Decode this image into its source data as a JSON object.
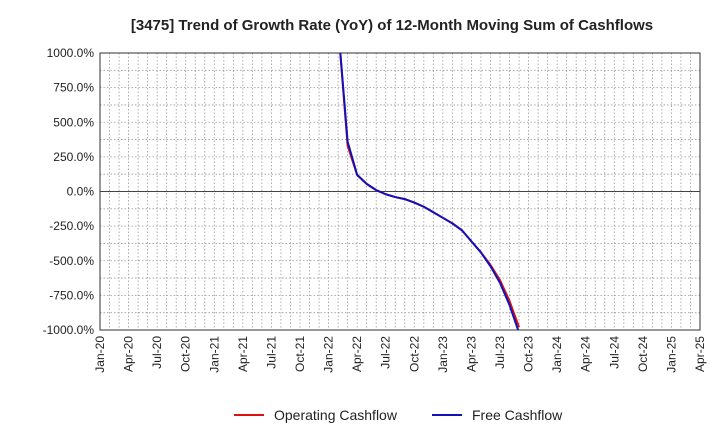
{
  "chart_data": {
    "type": "line",
    "title": "[3475]  Trend of Growth Rate (YoY) of 12-Month Moving Sum of Cashflows",
    "xlabel": "",
    "ylabel": "",
    "ylim": [
      -1000,
      1000
    ],
    "x_ticks": [
      "Jan-20",
      "Apr-20",
      "Jul-20",
      "Oct-20",
      "Jan-21",
      "Apr-21",
      "Jul-21",
      "Oct-21",
      "Jan-22",
      "Apr-22",
      "Jul-22",
      "Oct-22",
      "Jan-23",
      "Apr-23",
      "Jul-23",
      "Oct-23",
      "Jan-24",
      "Apr-24",
      "Jul-24",
      "Oct-24",
      "Jan-25",
      "Apr-25"
    ],
    "y_ticks": [
      "1000.0%",
      "750.0%",
      "500.0%",
      "250.0%",
      "0.0%",
      "-250.0%",
      "-500.0%",
      "-750.0%",
      "-1000.0%"
    ],
    "y_tick_values": [
      1000,
      750,
      500,
      250,
      0,
      -250,
      -500,
      -750,
      -1000
    ],
    "grid": true,
    "legend_position": "bottom",
    "series": [
      {
        "name": "Operating Cashflow",
        "color": "#dd1111",
        "points": [
          [
            "2022-02",
            1200
          ],
          [
            "2022-03",
            330
          ],
          [
            "2022-04",
            120
          ],
          [
            "2022-05",
            55
          ],
          [
            "2022-06",
            10
          ],
          [
            "2022-07",
            -20
          ],
          [
            "2022-08",
            -40
          ],
          [
            "2022-09",
            -55
          ],
          [
            "2022-10",
            -80
          ],
          [
            "2022-11",
            -110
          ],
          [
            "2022-12",
            -150
          ],
          [
            "2023-01",
            -190
          ],
          [
            "2023-02",
            -230
          ],
          [
            "2023-03",
            -280
          ],
          [
            "2023-04",
            -360
          ],
          [
            "2023-05",
            -440
          ],
          [
            "2023-06",
            -530
          ],
          [
            "2023-07",
            -640
          ],
          [
            "2023-08",
            -790
          ],
          [
            "2023-09",
            -980
          ]
        ]
      },
      {
        "name": "Free Cashflow",
        "color": "#1111bb",
        "points": [
          [
            "2022-02",
            1200
          ],
          [
            "2022-03",
            360
          ],
          [
            "2022-04",
            120
          ],
          [
            "2022-05",
            55
          ],
          [
            "2022-06",
            10
          ],
          [
            "2022-07",
            -20
          ],
          [
            "2022-08",
            -40
          ],
          [
            "2022-09",
            -55
          ],
          [
            "2022-10",
            -80
          ],
          [
            "2022-11",
            -110
          ],
          [
            "2022-12",
            -150
          ],
          [
            "2023-01",
            -190
          ],
          [
            "2023-02",
            -230
          ],
          [
            "2023-03",
            -280
          ],
          [
            "2023-04",
            -360
          ],
          [
            "2023-05",
            -440
          ],
          [
            "2023-06",
            -540
          ],
          [
            "2023-07",
            -660
          ],
          [
            "2023-08",
            -820
          ],
          [
            "2023-09",
            -1020
          ]
        ]
      }
    ]
  }
}
